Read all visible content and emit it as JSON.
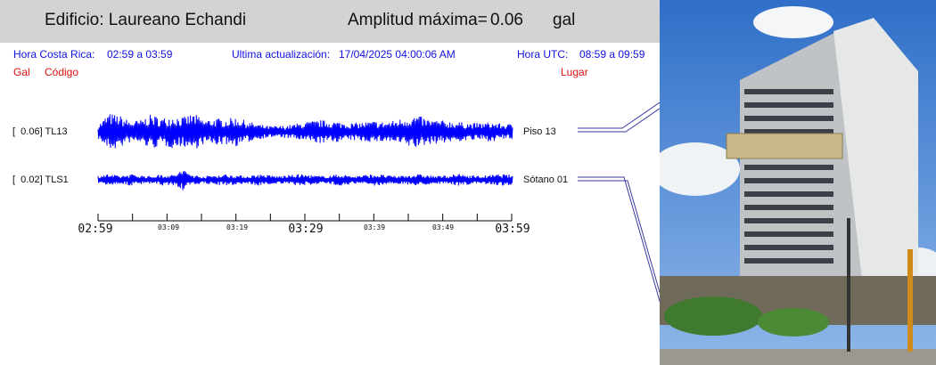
{
  "header": {
    "building_label": "Edificio: Laureano Echandi",
    "amplitude_label": "Amplitud máxima=",
    "amplitude_value": "0.06",
    "amplitude_unit": "gal"
  },
  "info": {
    "local_time_label": "Hora Costa Rica:",
    "local_time_range": "02:59 a 03:59",
    "update_label": "Ultima actualización:",
    "update_value": "17/04/2025 04:00:06 AM",
    "utc_label": "Hora UTC:",
    "utc_range": "08:59 a 09:59"
  },
  "columns": {
    "gal": "Gal",
    "code": "Código",
    "place": "Lugar"
  },
  "colors": {
    "trace": "#0000ff",
    "info_text": "#1010e0",
    "column_text": "#e01010",
    "header_bg": "#d3d3d3"
  },
  "chart_data": {
    "type": "line",
    "title": "",
    "x_range": [
      "02:59",
      "03:59"
    ],
    "x_ticks": [
      "02:59",
      "03:09",
      "03:19",
      "03:29",
      "03:39",
      "03:49",
      "03:59"
    ],
    "series": [
      {
        "name": "TL13",
        "amplitude_label": "[  0.06] TL13",
        "max_amplitude_gal": 0.06,
        "location": "Piso 13",
        "envelope": [
          0.35,
          0.95,
          0.85,
          0.55,
          0.6,
          0.9,
          0.7,
          0.85,
          0.75,
          0.95,
          0.6,
          0.7,
          0.65,
          0.75,
          0.55,
          0.4,
          0.3,
          0.3,
          0.35,
          0.45,
          0.55,
          0.6,
          0.55,
          0.5,
          0.45,
          0.5,
          0.55,
          0.5,
          0.6,
          0.75,
          0.85,
          0.65,
          0.6,
          0.55,
          0.5,
          0.45,
          0.45,
          0.5,
          0.4,
          0.4
        ]
      },
      {
        "name": "TLS1",
        "amplitude_label": "[  0.02] TLS1",
        "max_amplitude_gal": 0.02,
        "location": "Sótano 01",
        "envelope": [
          0.25,
          0.3,
          0.2,
          0.3,
          0.25,
          0.2,
          0.3,
          0.25,
          0.55,
          0.25,
          0.2,
          0.25,
          0.3,
          0.25,
          0.2,
          0.3,
          0.25,
          0.2,
          0.25,
          0.3,
          0.25,
          0.2,
          0.25,
          0.3,
          0.2,
          0.25,
          0.3,
          0.25,
          0.2,
          0.25,
          0.3,
          0.25,
          0.2,
          0.25,
          0.3,
          0.25,
          0.2,
          0.25,
          0.3,
          0.25
        ]
      }
    ]
  }
}
